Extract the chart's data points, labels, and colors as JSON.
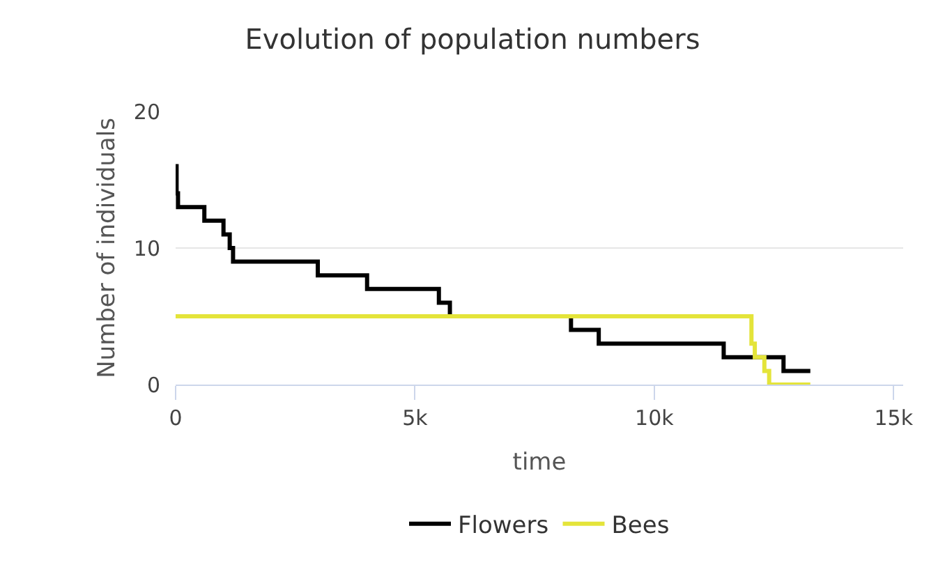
{
  "chart_data": {
    "type": "step",
    "title": "Evolution of population numbers",
    "xlabel": "time",
    "ylabel": "Number of individuals",
    "xlim": [
      0,
      15200
    ],
    "xticks": [
      0,
      {
        "value": 5000,
        "label": "5k"
      },
      {
        "value": 10000,
        "label": "10k"
      },
      {
        "value": 15000,
        "label": "15k"
      }
    ],
    "ylim": [
      0,
      20
    ],
    "yticks": [
      0,
      10,
      20
    ],
    "grid": "y",
    "legend": "bottom",
    "line_style": "solid",
    "marker": "none",
    "series": [
      {
        "name": "Flowers",
        "color": "#000000",
        "x": [
          0,
          20,
          50,
          600,
          1000,
          1130,
          1200,
          2970,
          4000,
          5500,
          5730,
          8260,
          8840,
          11450,
          12700,
          13260
        ],
        "values": [
          16,
          14,
          13,
          12,
          11,
          10,
          9,
          8,
          7,
          6,
          5,
          4,
          3,
          2,
          1,
          1
        ]
      },
      {
        "name": "Bees",
        "color": "#e4e43a",
        "x": [
          0,
          12030,
          12100,
          12300,
          12400,
          13260
        ],
        "values": [
          5,
          3,
          2,
          1,
          0,
          0
        ]
      }
    ]
  }
}
